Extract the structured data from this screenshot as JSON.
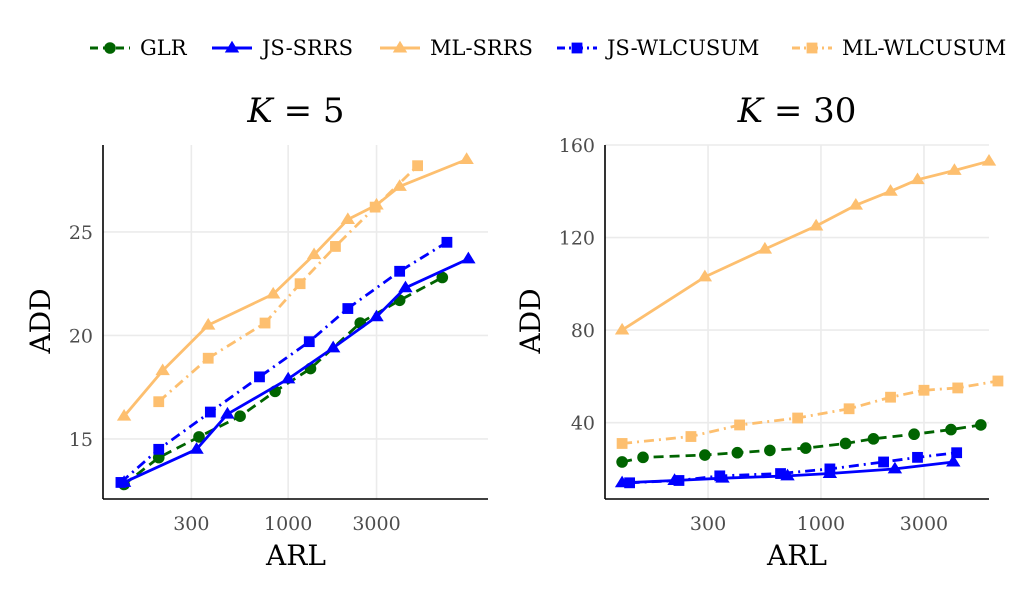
{
  "legend": {
    "items": [
      {
        "name": "GLR",
        "color": "#006400",
        "dash": "10,6",
        "marker": "circle"
      },
      {
        "name": "JS-SRRS",
        "color": "#0000ff",
        "dash": "",
        "marker": "triangle"
      },
      {
        "name": "ML-SRRS",
        "color": "#fdbf6f",
        "dash": "",
        "marker": "triangle"
      },
      {
        "name": "JS-WLCUSUM",
        "color": "#0000ff",
        "dash": "10,5,2,5",
        "marker": "square"
      },
      {
        "name": "ML-WLCUSUM",
        "color": "#fdbf6f",
        "dash": "10,5,2,5",
        "marker": "square"
      }
    ]
  },
  "chart_data": [
    {
      "type": "line",
      "title": "K = 5",
      "title_var": "K",
      "title_rest": " = 5",
      "xlabel": "ARL",
      "ylabel": "ADD",
      "xscale": "log",
      "xlim": [
        100,
        12000
      ],
      "ylim": [
        12.1,
        29.2
      ],
      "xticks": [
        300,
        1000,
        3000
      ],
      "xtick_labels": [
        "300",
        "1000",
        "3000"
      ],
      "yticks": [
        15,
        20,
        25
      ],
      "ytick_labels": [
        "15",
        "20",
        "25"
      ],
      "series": [
        {
          "name": "GLR",
          "x": [
            130,
            200,
            330,
            550,
            850,
            1320,
            2450,
            4000,
            6800
          ],
          "y": [
            12.8,
            14.1,
            15.1,
            16.1,
            17.3,
            18.4,
            20.6,
            21.7,
            22.8
          ]
        },
        {
          "name": "JS-SRRS",
          "x": [
            130,
            320,
            470,
            1000,
            1750,
            3000,
            4300,
            9400
          ],
          "y": [
            12.9,
            14.5,
            16.2,
            17.9,
            19.4,
            20.9,
            22.3,
            23.7
          ]
        },
        {
          "name": "ML-SRRS",
          "x": [
            130,
            210,
            370,
            830,
            1380,
            2100,
            3000,
            4000,
            9200
          ],
          "y": [
            16.1,
            18.3,
            20.5,
            22.0,
            23.9,
            25.6,
            26.3,
            27.2,
            28.5
          ]
        },
        {
          "name": "JS-WLCUSUM",
          "x": [
            125,
            200,
            380,
            700,
            1300,
            2100,
            4000,
            7200
          ],
          "y": [
            12.9,
            14.5,
            16.3,
            18.0,
            19.7,
            21.3,
            23.1,
            24.5
          ]
        },
        {
          "name": "ML-WLCUSUM",
          "x": [
            200,
            370,
            750,
            1160,
            1800,
            2950,
            5000
          ],
          "y": [
            16.8,
            18.9,
            20.6,
            22.5,
            24.3,
            26.2,
            28.2
          ]
        }
      ]
    },
    {
      "type": "line",
      "title": "K = 30",
      "title_var": "K",
      "title_rest": " = 30",
      "xlabel": "ARL",
      "ylabel": "ADD",
      "xscale": "log",
      "xlim": [
        100,
        6000
      ],
      "ylim": [
        7,
        160
      ],
      "xticks": [
        300,
        1000,
        3000
      ],
      "xtick_labels": [
        "300",
        "1000",
        "3000"
      ],
      "yticks": [
        40,
        80,
        120,
        160
      ],
      "ytick_labels": [
        "40",
        "80",
        "120",
        "160"
      ],
      "series": [
        {
          "name": "GLR",
          "x": [
            120,
            150,
            290,
            410,
            580,
            850,
            1300,
            1750,
            2700,
            4000,
            5500
          ],
          "y": [
            23,
            25,
            26,
            27,
            28,
            29,
            31,
            33,
            35,
            37,
            39
          ]
        },
        {
          "name": "JS-SRRS",
          "x": [
            120,
            210,
            350,
            700,
            1100,
            2200,
            4100
          ],
          "y": [
            14,
            15,
            16,
            17,
            18,
            20,
            23
          ]
        },
        {
          "name": "ML-SRRS",
          "x": [
            120,
            290,
            550,
            950,
            1450,
            2100,
            2800,
            4150,
            6000
          ],
          "y": [
            80,
            103,
            115,
            125,
            134,
            140,
            145,
            149,
            153
          ]
        },
        {
          "name": "JS-WLCUSUM",
          "x": [
            130,
            220,
            340,
            650,
            1100,
            1950,
            2800,
            4250
          ],
          "y": [
            14,
            15,
            17,
            18,
            20,
            23,
            25,
            27
          ]
        },
        {
          "name": "ML-WLCUSUM",
          "x": [
            120,
            250,
            420,
            780,
            1350,
            2100,
            3000,
            4300,
            6600
          ],
          "y": [
            31,
            34,
            39,
            42,
            46,
            51,
            54,
            55,
            58
          ]
        }
      ]
    }
  ]
}
